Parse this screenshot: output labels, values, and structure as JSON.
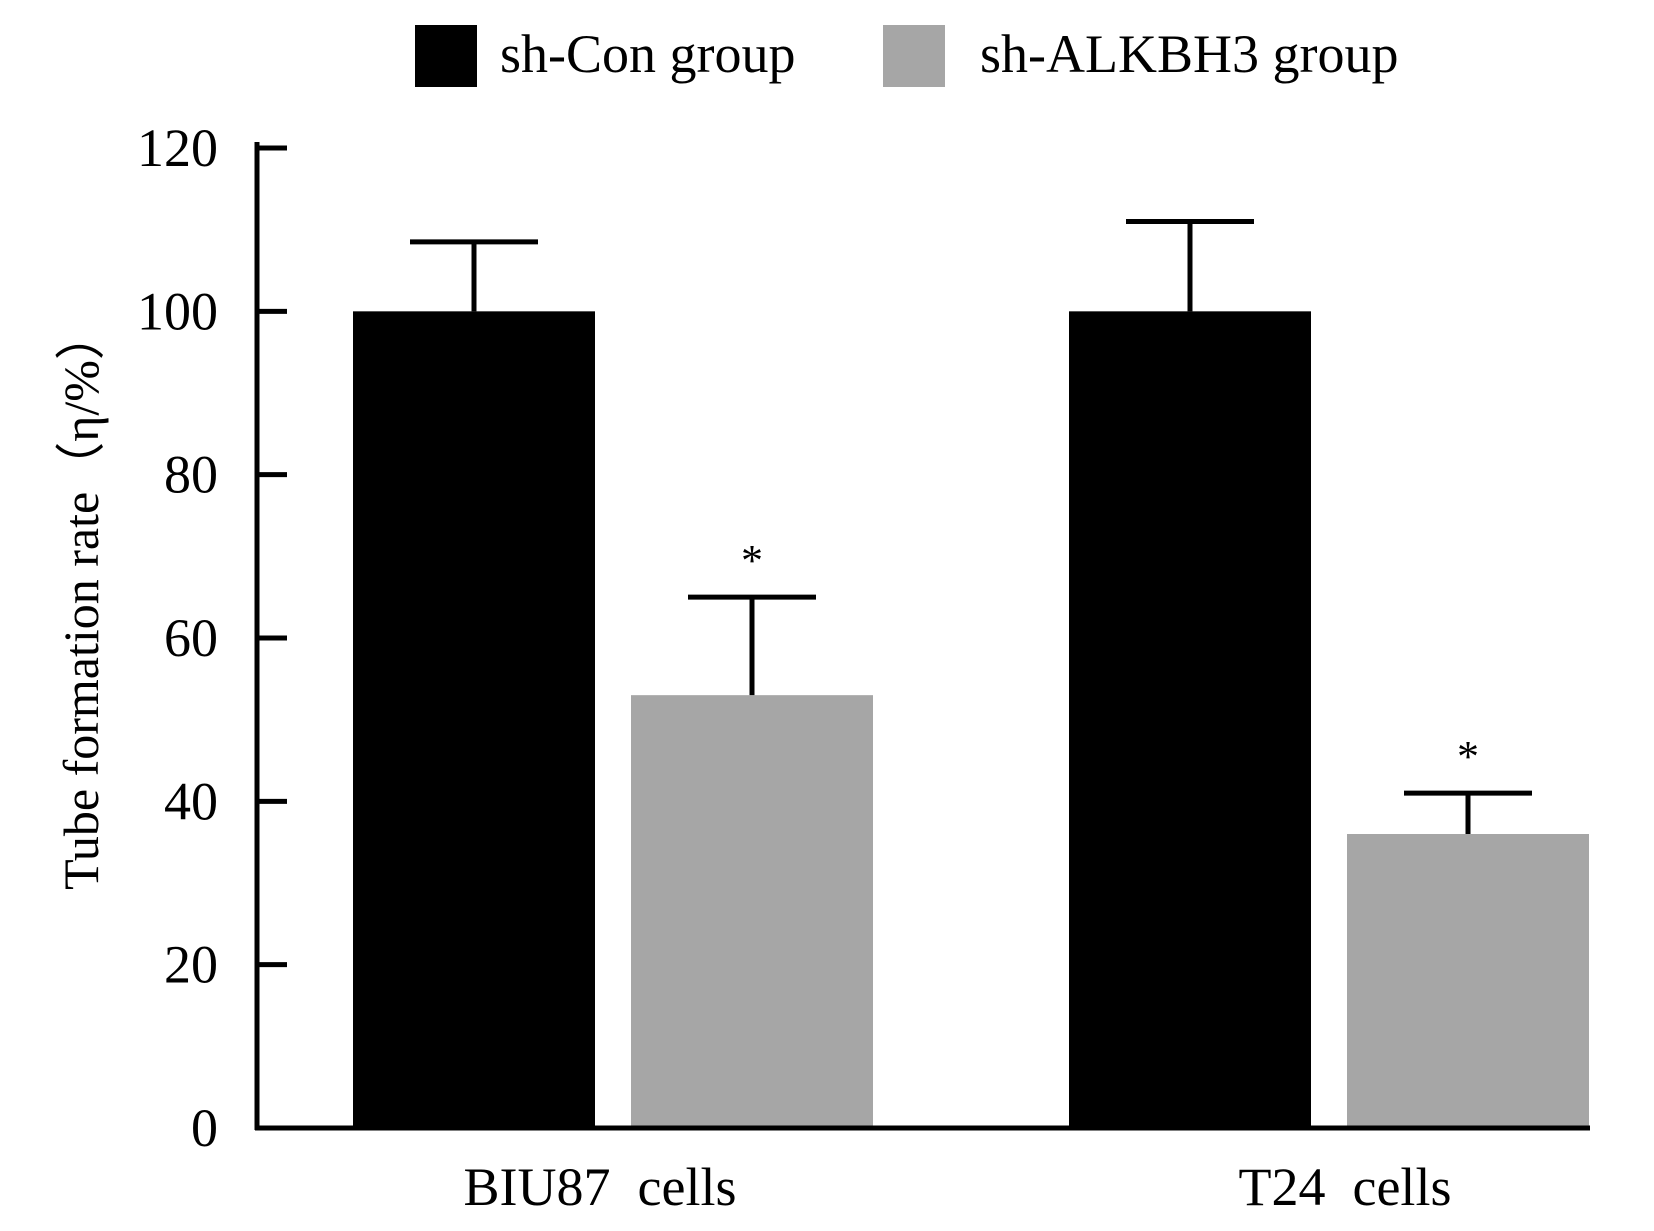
{
  "chart_data": {
    "type": "bar",
    "title": "",
    "xlabel": "",
    "ylabel": "Tube formation rate（η/%）",
    "ylim": [
      0,
      120
    ],
    "yticks": [
      "0",
      "20",
      "40",
      "60",
      "80",
      "100",
      "120"
    ],
    "categories": [
      "BIU87  cells",
      "T24  cells"
    ],
    "series": [
      {
        "name": "sh-Con group",
        "color": "#000000",
        "values": [
          100,
          100
        ],
        "errors": [
          8.5,
          11
        ],
        "annotations": [
          "",
          ""
        ]
      },
      {
        "name": "sh-ALKBH3 group",
        "color": "#a6a6a6",
        "values": [
          53,
          36
        ],
        "errors": [
          12,
          5
        ],
        "annotations": [
          "*",
          "*"
        ]
      }
    ],
    "legend": {
      "position": "top"
    }
  }
}
